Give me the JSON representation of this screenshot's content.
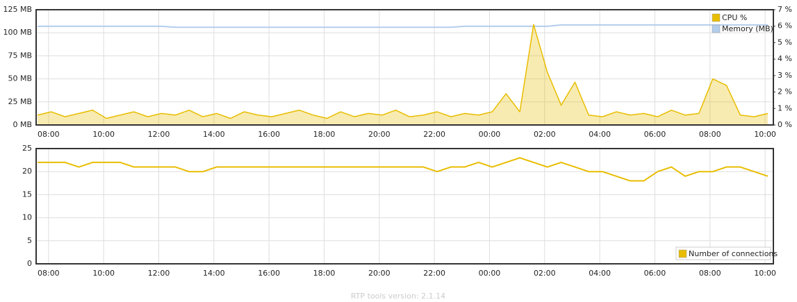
{
  "chart_data": [
    {
      "type": "line",
      "x": [
        7.6,
        8.1,
        8.6,
        9.1,
        9.6,
        10.1,
        10.6,
        11.1,
        11.6,
        12.1,
        12.6,
        13.1,
        13.6,
        14.1,
        14.6,
        15.1,
        15.6,
        16.1,
        16.6,
        17.1,
        17.6,
        18.1,
        18.6,
        19.1,
        19.6,
        20.1,
        20.6,
        21.1,
        21.6,
        22.1,
        22.6,
        23.1,
        23.6,
        24.1,
        24.6,
        25.1,
        25.6,
        26.1,
        26.6,
        27.1,
        27.6,
        28.1,
        28.6,
        29.1,
        29.6,
        30.1,
        30.6,
        31.1,
        31.6,
        32.1,
        32.6,
        33.1,
        33.6,
        34.1
      ],
      "series": [
        {
          "name": "CPU %",
          "color": "#e8bd00",
          "axis": "y2",
          "area": true,
          "values": [
            0.6,
            0.8,
            0.5,
            0.7,
            0.9,
            0.4,
            0.6,
            0.8,
            0.5,
            0.7,
            0.6,
            0.9,
            0.5,
            0.7,
            0.4,
            0.8,
            0.6,
            0.5,
            0.7,
            0.9,
            0.6,
            0.4,
            0.8,
            0.5,
            0.7,
            0.6,
            0.9,
            0.5,
            0.6,
            0.8,
            0.5,
            0.7,
            0.6,
            0.8,
            1.9,
            0.8,
            6.1,
            3.2,
            1.2,
            2.6,
            0.6,
            0.5,
            0.8,
            0.6,
            0.7,
            0.5,
            0.9,
            0.6,
            0.7,
            2.8,
            2.4,
            0.6,
            0.5,
            0.7
          ]
        },
        {
          "name": "Memory (MB)",
          "color": "#b3cdec",
          "values": [
            107,
            107,
            107,
            107,
            107,
            107,
            107,
            107,
            107,
            107,
            106,
            106,
            106,
            106,
            106,
            106,
            106,
            106,
            106,
            106,
            106,
            106,
            106,
            106,
            106,
            106,
            106,
            106,
            106,
            106,
            106,
            107,
            107,
            107,
            107,
            107,
            107,
            107,
            108.5,
            108.5,
            108.5,
            108.5,
            108.5,
            108.5,
            108.5,
            108.5,
            108.5,
            108.5,
            108.5,
            108.5,
            108.5,
            108.5,
            108.5,
            108.5
          ]
        }
      ],
      "xlim": [
        7.55,
        34.3
      ],
      "xticks": [
        {
          "value": 8,
          "label": "08:00"
        },
        {
          "value": 10,
          "label": "10:00"
        },
        {
          "value": 12,
          "label": "12:00"
        },
        {
          "value": 14,
          "label": "14:00"
        },
        {
          "value": 16,
          "label": "16:00"
        },
        {
          "value": 18,
          "label": "18:00"
        },
        {
          "value": 20,
          "label": "20:00"
        },
        {
          "value": 22,
          "label": "22:00"
        },
        {
          "value": 24,
          "label": "00:00"
        },
        {
          "value": 26,
          "label": "02:00"
        },
        {
          "value": 28,
          "label": "04:00"
        },
        {
          "value": 30,
          "label": "06:00"
        },
        {
          "value": 32,
          "label": "08:00"
        },
        {
          "value": 34,
          "label": "10:00"
        }
      ],
      "ylim": [
        0,
        125
      ],
      "yticks": [
        {
          "value": 0,
          "label": "0 MB"
        },
        {
          "value": 25,
          "label": "25 MB"
        },
        {
          "value": 50,
          "label": "50 MB"
        },
        {
          "value": 75,
          "label": "75 MB"
        },
        {
          "value": 100,
          "label": "100 MB"
        },
        {
          "value": 125,
          "label": "125 MB"
        }
      ],
      "y2lim": [
        0,
        7
      ],
      "y2ticks": [
        {
          "value": 0,
          "label": "0 %"
        },
        {
          "value": 1,
          "label": "1 %"
        },
        {
          "value": 2,
          "label": "2 %"
        },
        {
          "value": 3,
          "label": "3 %"
        },
        {
          "value": 4,
          "label": "4 %"
        },
        {
          "value": 5,
          "label": "5 %"
        },
        {
          "value": 6,
          "label": "6 %"
        },
        {
          "value": 7,
          "label": "7 %"
        }
      ],
      "grid": true,
      "legend": "top-right"
    },
    {
      "type": "line",
      "x": [
        7.6,
        8.1,
        8.6,
        9.1,
        9.6,
        10.1,
        10.6,
        11.1,
        11.6,
        12.1,
        12.6,
        13.1,
        13.6,
        14.1,
        14.6,
        15.1,
        15.6,
        16.1,
        16.6,
        17.1,
        17.6,
        18.1,
        18.6,
        19.1,
        19.6,
        20.1,
        20.6,
        21.1,
        21.6,
        22.1,
        22.6,
        23.1,
        23.6,
        24.1,
        24.6,
        25.1,
        25.6,
        26.1,
        26.6,
        27.1,
        27.6,
        28.1,
        28.6,
        29.1,
        29.6,
        30.1,
        30.6,
        31.1,
        31.6,
        32.1,
        32.6,
        33.1,
        33.6,
        34.1
      ],
      "series": [
        {
          "name": "Number of connections",
          "color": "#e8bd00",
          "values": [
            22,
            22,
            22,
            21,
            22,
            22,
            22,
            21,
            21,
            21,
            21,
            20,
            20,
            21,
            21,
            21,
            21,
            21,
            21,
            21,
            21,
            21,
            21,
            21,
            21,
            21,
            21,
            21,
            21,
            20,
            21,
            21,
            22,
            21,
            22,
            23,
            22,
            21,
            22,
            21,
            20,
            20,
            19,
            18,
            18,
            20,
            21,
            19,
            20,
            20,
            21,
            21,
            20,
            19
          ]
        }
      ],
      "xlim": [
        7.55,
        34.3
      ],
      "xticks": [
        {
          "value": 8,
          "label": "08:00"
        },
        {
          "value": 10,
          "label": "10:00"
        },
        {
          "value": 12,
          "label": "12:00"
        },
        {
          "value": 14,
          "label": "14:00"
        },
        {
          "value": 16,
          "label": "16:00"
        },
        {
          "value": 18,
          "label": "18:00"
        },
        {
          "value": 20,
          "label": "20:00"
        },
        {
          "value": 22,
          "label": "22:00"
        },
        {
          "value": 24,
          "label": "00:00"
        },
        {
          "value": 26,
          "label": "02:00"
        },
        {
          "value": 28,
          "label": "04:00"
        },
        {
          "value": 30,
          "label": "06:00"
        },
        {
          "value": 32,
          "label": "08:00"
        },
        {
          "value": 34,
          "label": "10:00"
        }
      ],
      "ylim": [
        0,
        25
      ],
      "yticks": [
        0,
        5,
        10,
        15,
        20,
        25
      ],
      "grid": true,
      "legend": "bottom-right"
    }
  ],
  "footer": "RTP tools version: 2.1.14"
}
